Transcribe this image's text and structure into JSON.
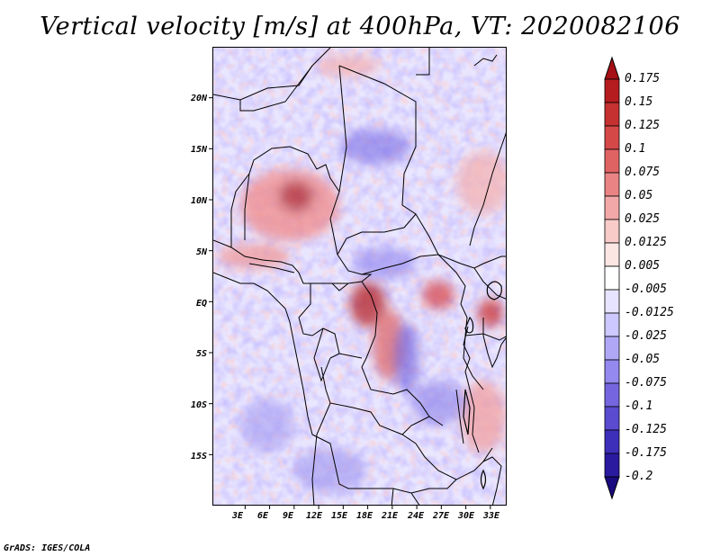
{
  "title": "Vertical velocity [m/s] at 400hPa, VT: 2020082106",
  "credit": "GrADS: IGES/COLA",
  "map": {
    "lat_range": [
      -20,
      25
    ],
    "lon_range": [
      -1,
      35
    ],
    "lat_labels": [
      "20N",
      "15N",
      "10N",
      "5N",
      "EQ",
      "5S",
      "10S",
      "15S"
    ],
    "lat_values": [
      20,
      15,
      10,
      5,
      0,
      -5,
      -10,
      -15
    ],
    "lon_labels": [
      "3E",
      "6E",
      "9E",
      "12E",
      "15E",
      "18E",
      "21E",
      "24E",
      "27E",
      "30E",
      "33E"
    ],
    "lon_values": [
      3,
      6,
      9,
      12,
      15,
      18,
      21,
      24,
      27,
      30,
      33
    ],
    "colors": {
      "upward_strong": "#a50f15",
      "upward_weak": "#fcd2cf",
      "downward_weak": "#d8d6ff",
      "downward_strong": "#2d1aa0",
      "coast": "#000000"
    }
  },
  "colorbar": {
    "labels": [
      "0.175",
      "0.15",
      "0.125",
      "0.1",
      "0.075",
      "0.05",
      "0.025",
      "0.0125",
      "0.005",
      "-0.005",
      "-0.0125",
      "-0.025",
      "-0.05",
      "-0.075",
      "-0.1",
      "-0.125",
      "-0.175",
      "-0.2"
    ],
    "colors": [
      "#a50f15",
      "#b51c1f",
      "#c53030",
      "#d44848",
      "#e06363",
      "#ea8484",
      "#f2a8a8",
      "#f8cbc9",
      "#fce6e4",
      "#ffffff",
      "#e6e4ff",
      "#cdc8ff",
      "#b0a8f7",
      "#9389ee",
      "#7566e0",
      "#5a4bd0",
      "#3e2fbb",
      "#2a1aa0",
      "#1a0a80"
    ]
  }
}
